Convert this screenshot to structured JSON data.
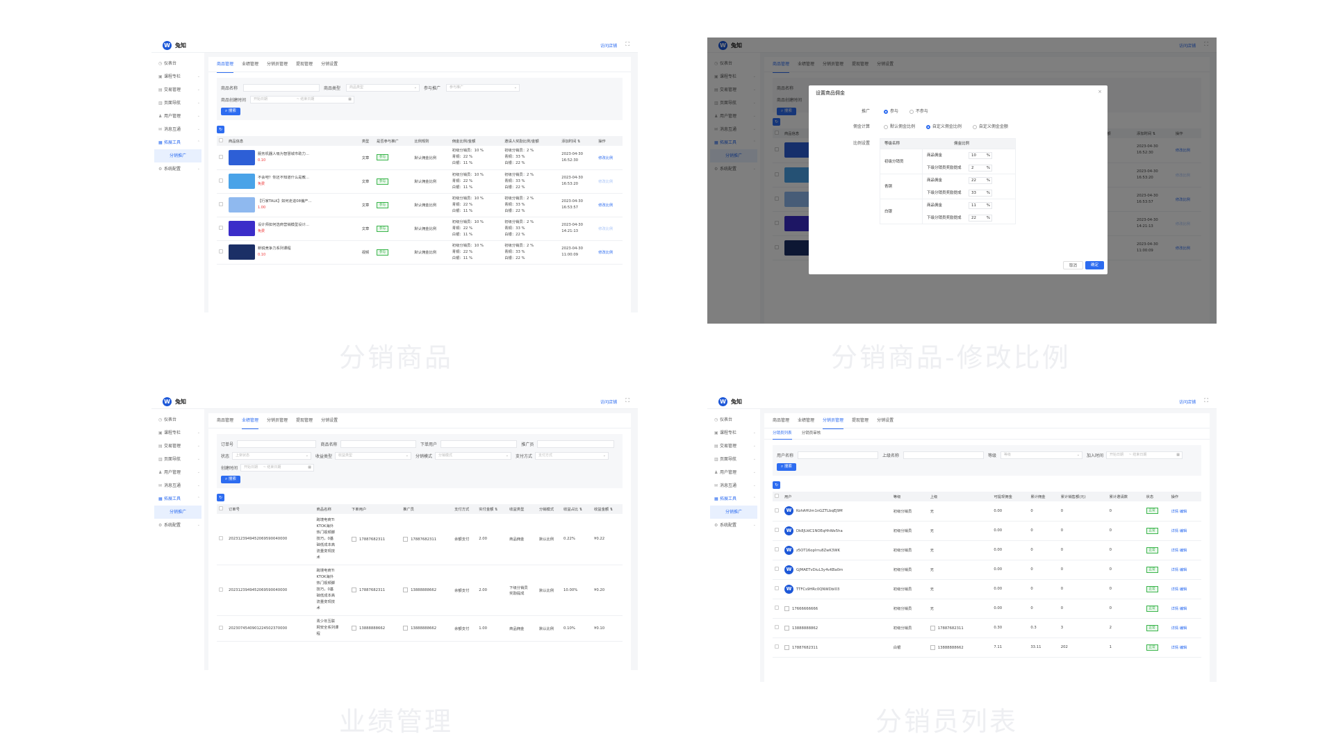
{
  "app": {
    "logo": "W",
    "brand": "兔知",
    "toplink": "访问店铺",
    "fullscreen": "⛶"
  },
  "sidebar": {
    "items": [
      {
        "icon": "◷",
        "label": "仪表台",
        "chev": ""
      },
      {
        "icon": "▣",
        "label": "课程专栏",
        "chev": "⌄"
      },
      {
        "icon": "▤",
        "label": "交易管理",
        "chev": "⌄"
      },
      {
        "icon": "▥",
        "label": "页面导航",
        "chev": "⌄"
      },
      {
        "icon": "♟",
        "label": "用户管理",
        "chev": "⌄"
      },
      {
        "icon": "✉",
        "label": "消息互通",
        "chev": "⌄"
      },
      {
        "icon": "▦",
        "label": "拓展工具",
        "chev": "⌃",
        "active": true
      },
      {
        "icon": "",
        "label": "分销推广",
        "sub": true
      },
      {
        "icon": "⚙",
        "label": "系统配置",
        "chev": "⌄"
      }
    ]
  },
  "tabs": [
    "商品管理",
    "业绩管理",
    "分销员管理",
    "提现管理",
    "分销设置"
  ],
  "captions": [
    "分销商品",
    "分销商品-修改比例",
    "业绩管理",
    "分销员列表"
  ],
  "p1": {
    "filters": {
      "name_label": "商品名称",
      "type_label": "商品类型",
      "type_placeholder": "商品类型",
      "join_label": "参与推广",
      "join_placeholder": "参与推广",
      "time_label": "商品创建时间",
      "start": "开始日期",
      "end": "结束日期",
      "search": "搜索"
    },
    "headers": [
      "商品信息",
      "类型",
      "是否参与推广",
      "比例规则",
      "佣金比例/金额",
      "邀请人奖励比例/金额",
      "添加时间 ⇅",
      "操作"
    ],
    "rows": [
      {
        "title": "服务机器人吸为智慧城市助力...",
        "price": "0.10",
        "type": "文章",
        "join": "参与",
        "rule": "默认佣金比例",
        "c1": "初级分销员：10 %",
        "c2": "青铜：22 %",
        "c3": "白银：11 %",
        "i1": "初级分销员：2 %",
        "i2": "青铜：33 %",
        "i3": "白银：22 %",
        "date": "2023-04-30",
        "time": "16:52:30",
        "op": "修改比例",
        "dim": false
      },
      {
        "title": "不会吧？你还不知道什么是教...",
        "price": "免费",
        "type": "文章",
        "join": "参与",
        "rule": "默认佣金比例",
        "c1": "初级分销员：10 %",
        "c2": "青铜：22 %",
        "c3": "白银：11 %",
        "i1": "初级分销员：2 %",
        "i2": "青铜：33 %",
        "i3": "白银：22 %",
        "date": "2023-04-30",
        "time": "16:53:20",
        "op": "修改比例",
        "dim": true
      },
      {
        "title": "【行家TALK】如何走进08偏产...",
        "price": "1.00",
        "type": "文章",
        "join": "参与",
        "rule": "默认佣金比例",
        "c1": "初级分销员：10 %",
        "c2": "青铜：22 %",
        "c3": "白银：11 %",
        "i1": "初级分销员：2 %",
        "i2": "青铜：33 %",
        "i3": "白银：22 %",
        "date": "2023-04-30",
        "time": "16:53:57",
        "op": "修改比例",
        "dim": false
      },
      {
        "title": "设计师如何选商营销模型设计...",
        "price": "免费",
        "type": "文章",
        "join": "参与",
        "rule": "默认佣金比例",
        "c1": "初级分销员：10 %",
        "c2": "青铜：22 %",
        "c3": "白银：11 %",
        "i1": "初级分销员：2 %",
        "i2": "青铜：33 %",
        "i3": "白银：22 %",
        "date": "2023-04-30",
        "time": "14:21:13",
        "op": "修改比例",
        "dim": true
      },
      {
        "title": "新锐竞争力系列课程",
        "price": "0.10",
        "type": "视频",
        "join": "参与",
        "rule": "默认佣金比例",
        "c1": "初级分销员：10 %",
        "c2": "青铜：22 %",
        "c3": "白银：11 %",
        "i1": "初级分销员：2 %",
        "i2": "青铜：33 %",
        "i3": "白银：22 %",
        "date": "2023-04-30",
        "time": "11:00:09",
        "op": "修改比例",
        "dim": false
      }
    ]
  },
  "modal": {
    "title": "设置商品佣金",
    "close": "×",
    "promo_label": "推广",
    "promo_on": "参与",
    "promo_off": "不参与",
    "calc_label": "佣金计算",
    "calc_opt1": "默认佣金比例",
    "calc_opt2": "自定义佣金比例",
    "calc_opt3": "自定义佣金金额",
    "ratio_label": "比例设置",
    "col1": "等级名称",
    "col2": "佣金比例",
    "levels": [
      {
        "name": "初级分销员",
        "r1": "商品佣金",
        "v1": "10",
        "r2": "下级分销员奖励提成",
        "v2": "2"
      },
      {
        "name": "青铜",
        "r1": "商品佣金",
        "v1": "22",
        "r2": "下级分销员奖励提成",
        "v2": "33"
      },
      {
        "name": "白银",
        "r1": "商品佣金",
        "v1": "11",
        "r2": "下级分销员奖励提成",
        "v2": "22"
      }
    ],
    "unit": "%",
    "cancel": "取消",
    "ok": "确定"
  },
  "p3": {
    "filters": {
      "order_label": "订单号",
      "goods_label": "商品名称",
      "buyer_label": "下单用户",
      "promoter_label": "推广员",
      "status_label": "状态",
      "status_ph": "上架状态",
      "income_label": "收益类型",
      "income_ph": "收益类型",
      "mode_label": "分销模式",
      "mode_ph": "分销模式",
      "pay_label": "支付方式",
      "pay_ph": "支付方式",
      "time_label": "创建时间",
      "start": "开始日期",
      "end": "结束日期",
      "search": "搜索"
    },
    "headers": [
      "订单号",
      "商品名称",
      "下单用户",
      "推广员",
      "支付方式",
      "实付金额 ⇅",
      "收益类型",
      "分销模式",
      "收益占比 ⇅",
      "收益金额 ⇅"
    ],
    "rows": [
      {
        "order": "2023123949452069590040000",
        "goods": [
          "跨境电商TI",
          "KTOK海外",
          "热门视频脚",
          "技巧，0基",
          "础低成本高",
          "流量变现技",
          "术"
        ],
        "buyer": "17887682311",
        "promoter": "17887682311",
        "pay": "余额支付",
        "amount": "2.00",
        "income": "商品佣金",
        "mode": "默认比例",
        "ratio": "0.22%",
        "money": "¥0.22"
      },
      {
        "order": "2023123949452069590040000",
        "goods": [
          "跨境电商TI",
          "KTOK海外",
          "热门视频脚",
          "技巧，0基",
          "础低成本高",
          "流量变现技",
          "术"
        ],
        "buyer": "17887682311",
        "promoter": "13888888662",
        "pay": "余额支付",
        "amount": "2.00",
        "income": "下级分销员\n奖励提成",
        "mode": "默认比例",
        "ratio": "10.00%",
        "money": "¥0.20"
      },
      {
        "order": "2023074540901224502370000",
        "goods": [
          "青少年互联",
          "网安全系列课",
          "程"
        ],
        "buyer": "13888888662",
        "promoter": "13888888662",
        "pay": "余额支付",
        "amount": "1.00",
        "income": "商品佣金",
        "mode": "默认比例",
        "ratio": "0.10%",
        "money": "¥0.10"
      }
    ]
  },
  "p4": {
    "subtabs": [
      "分销员列表",
      "分销员审核"
    ],
    "filters": {
      "user_label": "用户名称",
      "parent_label": "上级名称",
      "level_label": "等级",
      "level_ph": "等级",
      "join_label": "加入时间",
      "start": "开始日期",
      "end": "结束日期",
      "search": "搜索"
    },
    "headers": [
      "用户",
      "等级",
      "上级",
      "可提现佣金",
      "累计佣金",
      "累计销售额(元)",
      "累计邀请数",
      "状态",
      "操作"
    ],
    "rows": [
      {
        "user": "KohAHUm1nGZTLbqEJ9M",
        "avatar": true,
        "level": "初级分销员",
        "parent": "无",
        "cash": "0.00",
        "total": "0",
        "sales": "0",
        "invite": "0",
        "status": "正常"
      },
      {
        "user": "Dk8JUdC1NOEqHhWe5ha",
        "avatar": true,
        "level": "初级分销员",
        "parent": "无",
        "cash": "0.00",
        "total": "0",
        "sales": "0",
        "invite": "0",
        "status": "正常"
      },
      {
        "user": "z5OT16opIrru8ZwK3WK",
        "avatar": true,
        "level": "初级分销员",
        "parent": "无",
        "cash": "0.00",
        "total": "0",
        "sales": "0",
        "invite": "0",
        "status": "正常"
      },
      {
        "user": "GJMAETvDiuL3y4vKBa0m",
        "avatar": true,
        "level": "初级分销员",
        "parent": "无",
        "cash": "0.00",
        "total": "0",
        "sales": "0",
        "invite": "0",
        "status": "正常"
      },
      {
        "user": "TTFCs9HRc0QNWDbI03",
        "avatar": true,
        "level": "初级分销员",
        "parent": "无",
        "cash": "0.00",
        "total": "0",
        "sales": "0",
        "invite": "0",
        "status": "正常"
      },
      {
        "user": "17666666666",
        "avatar": false,
        "level": "初级分销员",
        "parent": "无",
        "cash": "0.00",
        "total": "0",
        "sales": "0",
        "invite": "0",
        "status": "正常"
      },
      {
        "user": "13888888862",
        "avatar": false,
        "level": "初级分销员",
        "parent": "17887682311",
        "cash": "0.30",
        "total": "0.3",
        "sales": "3",
        "invite": "2",
        "status": "正常"
      },
      {
        "user": "17887682311",
        "avatar": false,
        "level": "白银",
        "parent": "13888888662",
        "cash": "7.11",
        "total": "33.11",
        "sales": "202",
        "invite": "1",
        "status": "正常"
      }
    ],
    "op_detail": "详情",
    "op_edit": "编辑"
  }
}
